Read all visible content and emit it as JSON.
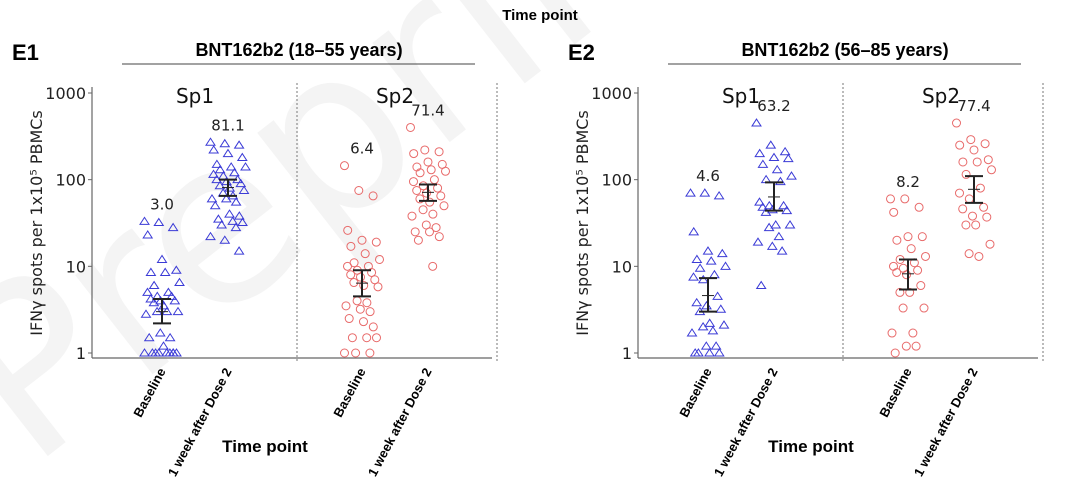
{
  "watermark": "Preprint",
  "top_label": "Time point",
  "colors": {
    "Sp1": "#3b3bd6",
    "Sp2": "#e86a6a",
    "axis": "#555555",
    "errorbar": "#222222"
  },
  "chart_data": [
    {
      "type": "scatter",
      "panel": "E1",
      "title": "BNT162b2 (18–55 years)",
      "ylabel": "IFNγ spots per 1x10⁵ PBMCs",
      "xlabel": "Time point",
      "yscale": "log",
      "ylim": [
        1,
        1000
      ],
      "yticks": [
        "1",
        "10",
        "100",
        "1000"
      ],
      "categories": [
        "Baseline",
        "1 week after Dose 2"
      ],
      "groups": [
        {
          "name": "Sp1",
          "marker": "triangle",
          "color": "#3b3bd6",
          "series": [
            {
              "time": "Baseline",
              "label": "3.0",
              "gmean": 3.0,
              "ci": [
                2.2,
                4.2
              ],
              "values": [
                33,
                32,
                28,
                23,
                12,
                9,
                8.5,
                8.5,
                6.5,
                6,
                5,
                5,
                4.5,
                4.5,
                4.2,
                4,
                4,
                3.8,
                3.5,
                3,
                3,
                3,
                2.8,
                1.7,
                1.5,
                1.5,
                1.2,
                1,
                1,
                1,
                1,
                1,
                1,
                1,
                1,
                1
              ]
            },
            {
              "time": "1 week after Dose 2",
              "label": "81.1",
              "gmean": 81.1,
              "ci": [
                65,
                100
              ],
              "values": [
                270,
                260,
                250,
                220,
                200,
                180,
                150,
                140,
                140,
                130,
                120,
                115,
                110,
                100,
                100,
                95,
                90,
                85,
                80,
                75,
                70,
                65,
                60,
                60,
                55,
                50,
                40,
                38,
                35,
                33,
                32,
                30,
                28,
                22,
                20,
                15
              ]
            }
          ]
        },
        {
          "name": "Sp2",
          "marker": "circle",
          "color": "#e86a6a",
          "series": [
            {
              "time": "Baseline",
              "label": "6.4",
              "gmean": 6.4,
              "ci": [
                4.5,
                9
              ],
              "values": [
                145,
                75,
                65,
                26,
                20,
                19,
                17,
                14,
                12,
                11,
                10,
                10,
                9,
                8.5,
                8,
                7.5,
                7,
                6.5,
                6,
                5.8,
                4,
                3.8,
                3.5,
                3.2,
                3,
                2.5,
                2.3,
                2,
                1.5,
                1.5,
                1.5,
                1,
                1,
                1
              ]
            },
            {
              "time": "1 week after Dose 2",
              "label": "71.4",
              "gmean": 71.4,
              "ci": [
                57,
                88
              ],
              "values": [
                400,
                220,
                210,
                200,
                160,
                150,
                140,
                130,
                125,
                120,
                100,
                95,
                85,
                80,
                75,
                70,
                65,
                60,
                55,
                50,
                45,
                40,
                38,
                30,
                28,
                25,
                25,
                22,
                20,
                10
              ]
            }
          ]
        }
      ]
    },
    {
      "type": "scatter",
      "panel": "E2",
      "title": "BNT162b2 (56–85 years)",
      "ylabel": "IFNγ spots per 1x10⁵ PBMCs",
      "xlabel": "Time point",
      "yscale": "log",
      "ylim": [
        1,
        1000
      ],
      "yticks": [
        "1",
        "10",
        "100",
        "1000"
      ],
      "categories": [
        "Baseline",
        "1 week after Dose 2"
      ],
      "groups": [
        {
          "name": "Sp1",
          "marker": "triangle",
          "color": "#3b3bd6",
          "series": [
            {
              "time": "Baseline",
              "label": "4.6",
              "gmean": 4.6,
              "ci": [
                3.0,
                7.3
              ],
              "values": [
                70,
                70,
                65,
                25,
                15,
                14,
                12,
                11.5,
                10,
                9.5,
                8,
                7.5,
                7,
                4.5,
                3.8,
                3.5,
                3.2,
                3,
                2.2,
                2.1,
                2,
                1.8,
                1.7,
                1.2,
                1.2,
                1,
                1,
                1,
                1
              ]
            },
            {
              "time": "1 week after Dose 2",
              "label": "63.2",
              "gmean": 63.2,
              "ci": [
                44,
                93
              ],
              "values": [
                450,
                250,
                210,
                200,
                180,
                175,
                150,
                130,
                110,
                100,
                95,
                55,
                50,
                50,
                48,
                45,
                44,
                42,
                30,
                30,
                28,
                22,
                19,
                17,
                15,
                6
              ]
            }
          ]
        },
        {
          "name": "Sp2",
          "marker": "circle",
          "color": "#e86a6a",
          "series": [
            {
              "time": "Baseline",
              "label": "8.2",
              "gmean": 8.2,
              "ci": [
                5.4,
                12
              ],
              "values": [
                60,
                60,
                48,
                42,
                22,
                22,
                20,
                16,
                13,
                12,
                11,
                10,
                9.5,
                9,
                8.5,
                8,
                6,
                5,
                5,
                3.3,
                3.3,
                1.7,
                1.7,
                1.2,
                1.2,
                1
              ]
            },
            {
              "time": "1 week after Dose 2",
              "label": "77.4",
              "gmean": 77.4,
              "ci": [
                54,
                110
              ],
              "values": [
                450,
                290,
                260,
                250,
                220,
                170,
                160,
                160,
                130,
                115,
                80,
                70,
                60,
                48,
                46,
                38,
                37,
                30,
                30,
                18,
                14,
                13
              ]
            }
          ]
        }
      ]
    }
  ]
}
